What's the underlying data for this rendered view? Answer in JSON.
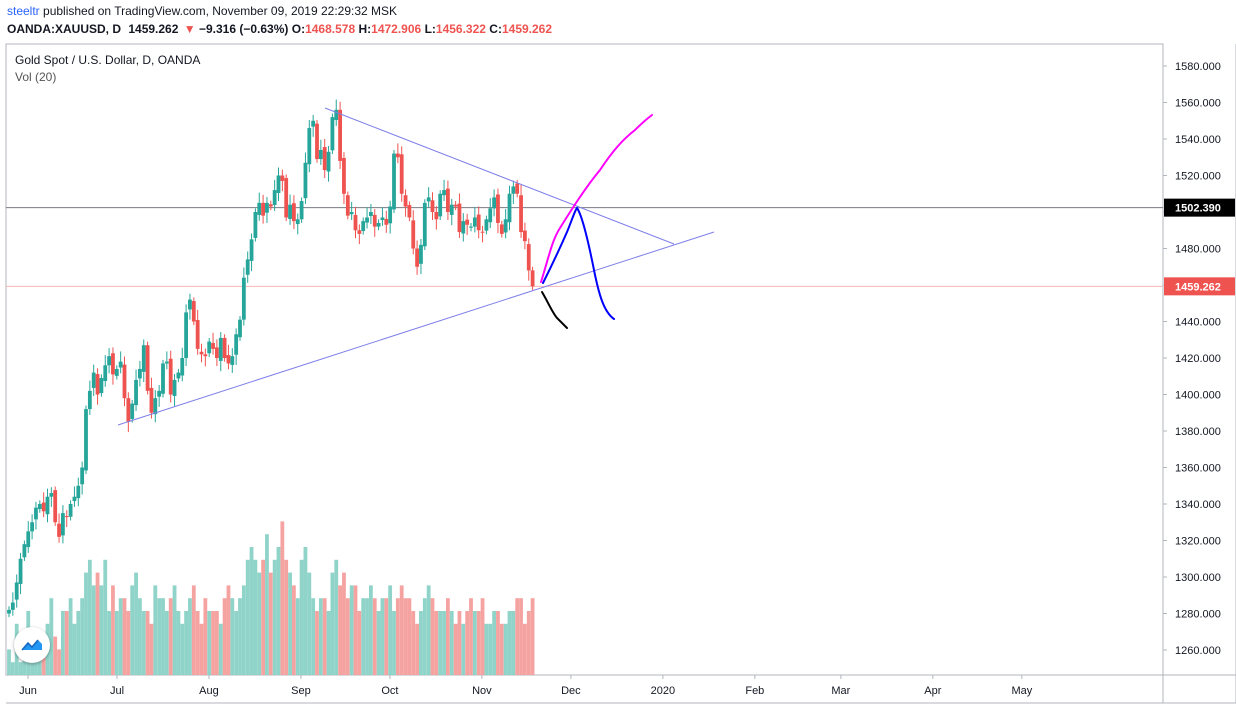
{
  "header": {
    "author": "steeltr",
    "published_text": " published on TradingView.com, November 09, 2019 22:29:32 MSK"
  },
  "quote": {
    "symbol": "OANDA:XAUUSD, D",
    "last": "1459.262",
    "arrow": "▼",
    "change": "−9.316 (−0.63%)",
    "o_label": "O:",
    "o_value": "1468.578",
    "h_label": "H:",
    "h_value": "1472.906",
    "l_label": "L:",
    "l_value": "1456.322",
    "c_label": "C:",
    "c_value": "1459.262"
  },
  "legend": {
    "title": "Gold Spot / U.S. Dollar, D, OANDA",
    "volume": "Vol (20)"
  },
  "colors": {
    "up": "#26a69a",
    "down": "#ef5350",
    "vol_up": "#8fd3c9",
    "vol_down": "#f5a3a1",
    "trendline": "#7f7fe8",
    "magenta": "#ff00ff",
    "blue": "#0000ff",
    "black": "#000000"
  },
  "chart_data": {
    "type": "candlestick",
    "symbol": "OANDA:XAUUSD",
    "timeframe": "D",
    "price_axis": {
      "ticks": [
        "1580.000",
        "1560.000",
        "1540.000",
        "1520.000",
        "1500.000",
        "1480.000",
        "1460.000",
        "1440.000",
        "1420.000",
        "1400.000",
        "1380.000",
        "1360.000",
        "1340.000",
        "1320.000",
        "1300.000",
        "1280.000",
        "1260.000"
      ],
      "range": [
        1248,
        1590
      ]
    },
    "time_axis": {
      "labels": [
        "Jun",
        "Jul",
        "Aug",
        "Sep",
        "Oct",
        "Nov",
        "Dec",
        "2020",
        "Feb",
        "Mar",
        "Apr",
        "May"
      ]
    },
    "horizontal_lines": [
      {
        "label": "1502.390",
        "price": 1502.39
      },
      {
        "label": "1459.262",
        "price": 1459.262
      }
    ],
    "closes": [
      1282,
      1286,
      1297,
      1310,
      1318,
      1325,
      1330,
      1338,
      1340,
      1336,
      1344,
      1346,
      1330,
      1322,
      1335,
      1333,
      1340,
      1344,
      1350,
      1360,
      1392,
      1402,
      1412,
      1400,
      1409,
      1416,
      1421,
      1411,
      1414,
      1418,
      1398,
      1385,
      1395,
      1408,
      1414,
      1427,
      1402,
      1390,
      1398,
      1402,
      1417,
      1418,
      1400,
      1408,
      1412,
      1420,
      1445,
      1452,
      1440,
      1425,
      1422,
      1421,
      1429,
      1425,
      1420,
      1431,
      1420,
      1417,
      1421,
      1433,
      1441,
      1464,
      1474,
      1485,
      1500,
      1505,
      1498,
      1505,
      1503,
      1512,
      1520,
      1517,
      1497,
      1504,
      1495,
      1496,
      1506,
      1527,
      1546,
      1550,
      1529,
      1534,
      1523,
      1533,
      1552,
      1556,
      1528,
      1510,
      1498,
      1500,
      1490,
      1488,
      1495,
      1497,
      1500,
      1492,
      1494,
      1497,
      1493,
      1503,
      1532,
      1530,
      1510,
      1503,
      1497,
      1480,
      1470,
      1482,
      1505,
      1508,
      1500,
      1496,
      1510,
      1512,
      1500,
      1504,
      1503,
      1489,
      1495,
      1493,
      1492,
      1497,
      1490,
      1489,
      1496,
      1502,
      1508,
      1494,
      1488,
      1496,
      1510,
      1514,
      1510,
      1489,
      1484,
      1468,
      1459.262
    ],
    "volume": [
      2,
      1,
      4,
      1,
      3,
      5,
      1,
      2,
      3,
      2,
      4,
      6,
      3,
      2,
      5,
      5,
      6,
      4,
      5,
      6,
      8,
      9,
      7,
      8,
      7,
      9,
      5,
      7,
      5,
      6,
      6,
      5,
      7,
      8,
      6,
      5,
      5,
      4,
      7,
      6,
      6,
      5,
      6,
      7,
      5,
      4,
      5,
      6,
      7,
      5,
      4,
      6,
      5,
      5,
      5,
      4,
      6,
      7,
      6,
      5,
      6,
      7,
      9,
      10,
      9,
      8,
      9,
      11,
      8,
      9,
      10,
      12,
      9,
      8,
      7,
      6,
      9,
      10,
      8,
      6,
      5,
      6,
      6,
      5,
      8,
      9,
      7,
      8,
      6,
      7,
      7,
      5,
      6,
      6,
      7,
      6,
      5,
      6,
      6,
      7,
      5,
      6,
      7,
      6,
      6,
      5,
      4,
      5,
      6,
      7,
      6,
      5,
      5,
      5,
      6,
      5,
      4,
      5,
      4,
      5,
      6,
      5,
      5,
      6,
      4,
      4,
      5,
      5,
      4,
      4,
      5,
      5,
      6,
      6,
      4,
      5,
      6
    ],
    "drawings": {
      "triangle_upper": {
        "from": [
          "2019-09-04",
          1556
        ],
        "to": [
          "2019-12-21",
          1481
        ]
      },
      "triangle_lower": {
        "from": [
          "2019-07-01",
          1383
        ],
        "to": [
          "2020-01-01",
          1489
        ]
      },
      "magenta_path": "bullish breakout projection",
      "blue_path": "rise then drop projection",
      "black_path": "breakdown projection"
    }
  }
}
